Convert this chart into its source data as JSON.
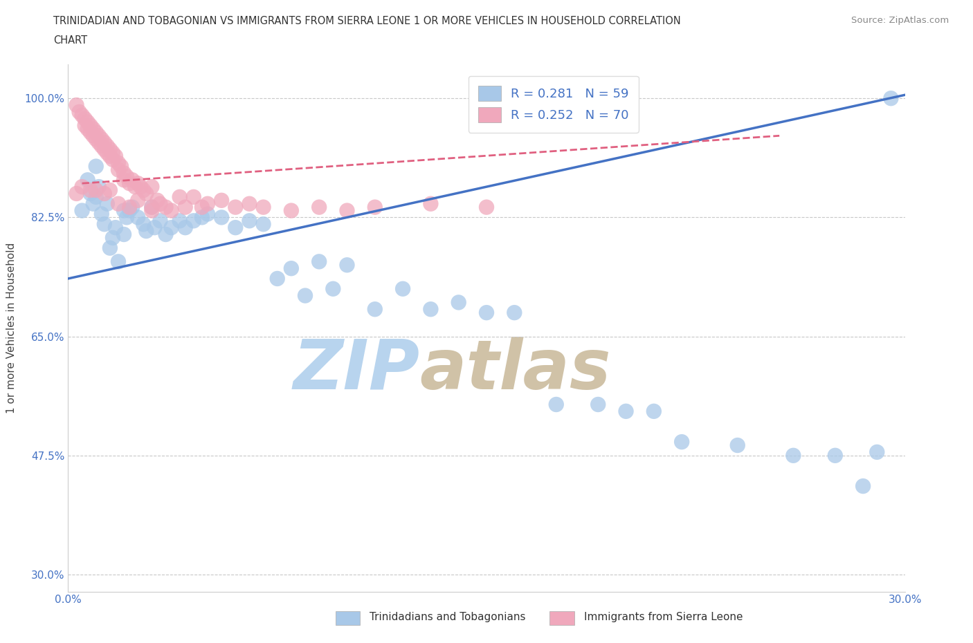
{
  "title_line1": "TRINIDADIAN AND TOBAGONIAN VS IMMIGRANTS FROM SIERRA LEONE 1 OR MORE VEHICLES IN HOUSEHOLD CORRELATION",
  "title_line2": "CHART",
  "source_text": "Source: ZipAtlas.com",
  "ylabel": "1 or more Vehicles in Household",
  "xlim": [
    0.0,
    0.3
  ],
  "ylim": [
    0.275,
    1.05
  ],
  "yticks": [
    0.3,
    0.475,
    0.65,
    0.825,
    1.0
  ],
  "ytick_labels": [
    "30.0%",
    "47.5%",
    "65.0%",
    "82.5%",
    "100.0%"
  ],
  "xticks": [
    0.0,
    0.05,
    0.1,
    0.15,
    0.2,
    0.25,
    0.3
  ],
  "xtick_labels": [
    "0.0%",
    "",
    "",
    "",
    "",
    "",
    "30.0%"
  ],
  "r_blue": 0.281,
  "n_blue": 59,
  "r_pink": 0.252,
  "n_pink": 70,
  "blue_color": "#a8c8e8",
  "pink_color": "#f0a8bc",
  "blue_line_color": "#4472c4",
  "pink_line_color": "#e06080",
  "grid_color": "#c8c8c8",
  "background_color": "#ffffff",
  "legend_label_blue": "Trinidadians and Tobagonians",
  "legend_label_pink": "Immigrants from Sierra Leone",
  "tick_label_color": "#4472c4",
  "blue_line_x0": 0.0,
  "blue_line_y0": 0.735,
  "blue_line_x1": 0.3,
  "blue_line_y1": 1.005,
  "pink_line_x0": 0.005,
  "pink_line_y0": 0.875,
  "pink_line_x1": 0.255,
  "pink_line_y1": 0.945,
  "blue_x": [
    0.005,
    0.007,
    0.008,
    0.009,
    0.01,
    0.01,
    0.011,
    0.012,
    0.013,
    0.014,
    0.015,
    0.016,
    0.017,
    0.018,
    0.02,
    0.02,
    0.021,
    0.022,
    0.023,
    0.025,
    0.027,
    0.028,
    0.03,
    0.031,
    0.033,
    0.035,
    0.037,
    0.04,
    0.042,
    0.045,
    0.048,
    0.05,
    0.055,
    0.06,
    0.065,
    0.07,
    0.075,
    0.08,
    0.085,
    0.09,
    0.095,
    0.1,
    0.11,
    0.12,
    0.13,
    0.14,
    0.15,
    0.16,
    0.175,
    0.19,
    0.2,
    0.21,
    0.22,
    0.24,
    0.26,
    0.275,
    0.285,
    0.29,
    0.295
  ],
  "blue_y": [
    0.835,
    0.88,
    0.86,
    0.845,
    0.9,
    0.855,
    0.87,
    0.83,
    0.815,
    0.845,
    0.78,
    0.795,
    0.81,
    0.76,
    0.835,
    0.8,
    0.825,
    0.835,
    0.84,
    0.825,
    0.815,
    0.805,
    0.84,
    0.81,
    0.82,
    0.8,
    0.81,
    0.82,
    0.81,
    0.82,
    0.825,
    0.83,
    0.825,
    0.81,
    0.82,
    0.815,
    0.735,
    0.75,
    0.71,
    0.76,
    0.72,
    0.755,
    0.69,
    0.72,
    0.69,
    0.7,
    0.685,
    0.685,
    0.55,
    0.55,
    0.54,
    0.54,
    0.495,
    0.49,
    0.475,
    0.475,
    0.43,
    0.48,
    1.0
  ],
  "pink_x": [
    0.003,
    0.004,
    0.005,
    0.006,
    0.006,
    0.007,
    0.007,
    0.008,
    0.008,
    0.009,
    0.009,
    0.01,
    0.01,
    0.011,
    0.011,
    0.012,
    0.012,
    0.013,
    0.013,
    0.014,
    0.014,
    0.015,
    0.015,
    0.016,
    0.016,
    0.017,
    0.018,
    0.018,
    0.019,
    0.02,
    0.02,
    0.021,
    0.022,
    0.023,
    0.024,
    0.025,
    0.026,
    0.027,
    0.028,
    0.03,
    0.03,
    0.032,
    0.033,
    0.035,
    0.037,
    0.04,
    0.042,
    0.045,
    0.048,
    0.05,
    0.055,
    0.06,
    0.065,
    0.07,
    0.08,
    0.09,
    0.1,
    0.11,
    0.13,
    0.15,
    0.003,
    0.005,
    0.008,
    0.01,
    0.013,
    0.015,
    0.018,
    0.022,
    0.025,
    0.03
  ],
  "pink_y": [
    0.99,
    0.98,
    0.975,
    0.97,
    0.96,
    0.965,
    0.955,
    0.96,
    0.95,
    0.955,
    0.945,
    0.95,
    0.94,
    0.945,
    0.935,
    0.94,
    0.93,
    0.935,
    0.925,
    0.93,
    0.92,
    0.925,
    0.915,
    0.92,
    0.91,
    0.915,
    0.905,
    0.895,
    0.9,
    0.89,
    0.88,
    0.885,
    0.875,
    0.88,
    0.87,
    0.875,
    0.87,
    0.865,
    0.86,
    0.87,
    0.84,
    0.85,
    0.845,
    0.84,
    0.835,
    0.855,
    0.84,
    0.855,
    0.84,
    0.845,
    0.85,
    0.84,
    0.845,
    0.84,
    0.835,
    0.84,
    0.835,
    0.84,
    0.845,
    0.84,
    0.86,
    0.87,
    0.865,
    0.865,
    0.86,
    0.865,
    0.845,
    0.84,
    0.85,
    0.835
  ]
}
